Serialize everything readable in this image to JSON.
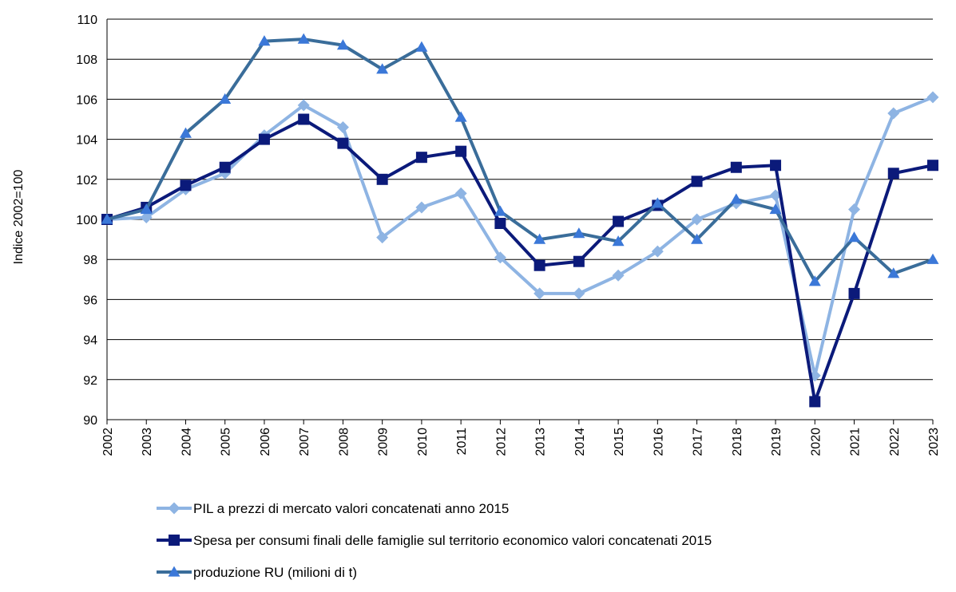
{
  "chart_data": {
    "type": "line",
    "title": "",
    "xlabel": "",
    "ylabel": "Indice 2002=100",
    "ylim": [
      90,
      110
    ],
    "yticks": [
      "90",
      "92",
      "94",
      "96",
      "98",
      "100",
      "102",
      "104",
      "106",
      "108",
      "110"
    ],
    "grid": "horizontal",
    "legend_position": "bottom",
    "categories": [
      "2002",
      "2003",
      "2004",
      "2005",
      "2006",
      "2007",
      "2008",
      "2009",
      "2010",
      "2011",
      "2012",
      "2013",
      "2014",
      "2015",
      "2016",
      "2017",
      "2018",
      "2019",
      "2020",
      "2021",
      "2022",
      "2023"
    ],
    "series": [
      {
        "name": "PIL a prezzi di mercato valori concatenati anno 2015",
        "color": "#8eb4e3",
        "marker": "diamond",
        "values": [
          100.0,
          100.1,
          101.5,
          102.3,
          104.2,
          105.7,
          104.6,
          99.1,
          100.6,
          101.3,
          98.1,
          96.3,
          96.3,
          97.2,
          98.4,
          100.0,
          100.8,
          101.2,
          92.2,
          100.5,
          105.3,
          106.1
        ]
      },
      {
        "name": "Spesa per consumi finali delle famiglie sul territorio economico valori concatenati 2015",
        "color": "#0b1a7a",
        "marker": "square",
        "values": [
          100.0,
          100.6,
          101.7,
          102.6,
          104.0,
          105.0,
          103.8,
          102.0,
          103.1,
          103.4,
          99.8,
          97.7,
          97.9,
          99.9,
          100.7,
          101.9,
          102.6,
          102.7,
          90.9,
          96.3,
          102.3,
          102.7
        ]
      },
      {
        "name": "produzione RU (milioni di t)",
        "color": "#3a6d9a",
        "marker": "triangle",
        "marker_color": "#3b78d8",
        "values": [
          100.0,
          100.5,
          104.3,
          106.0,
          108.9,
          109.0,
          108.7,
          107.5,
          108.6,
          105.1,
          100.4,
          99.0,
          99.3,
          98.9,
          100.8,
          99.0,
          101.0,
          100.5,
          96.9,
          99.1,
          97.3,
          98.0
        ]
      }
    ]
  }
}
